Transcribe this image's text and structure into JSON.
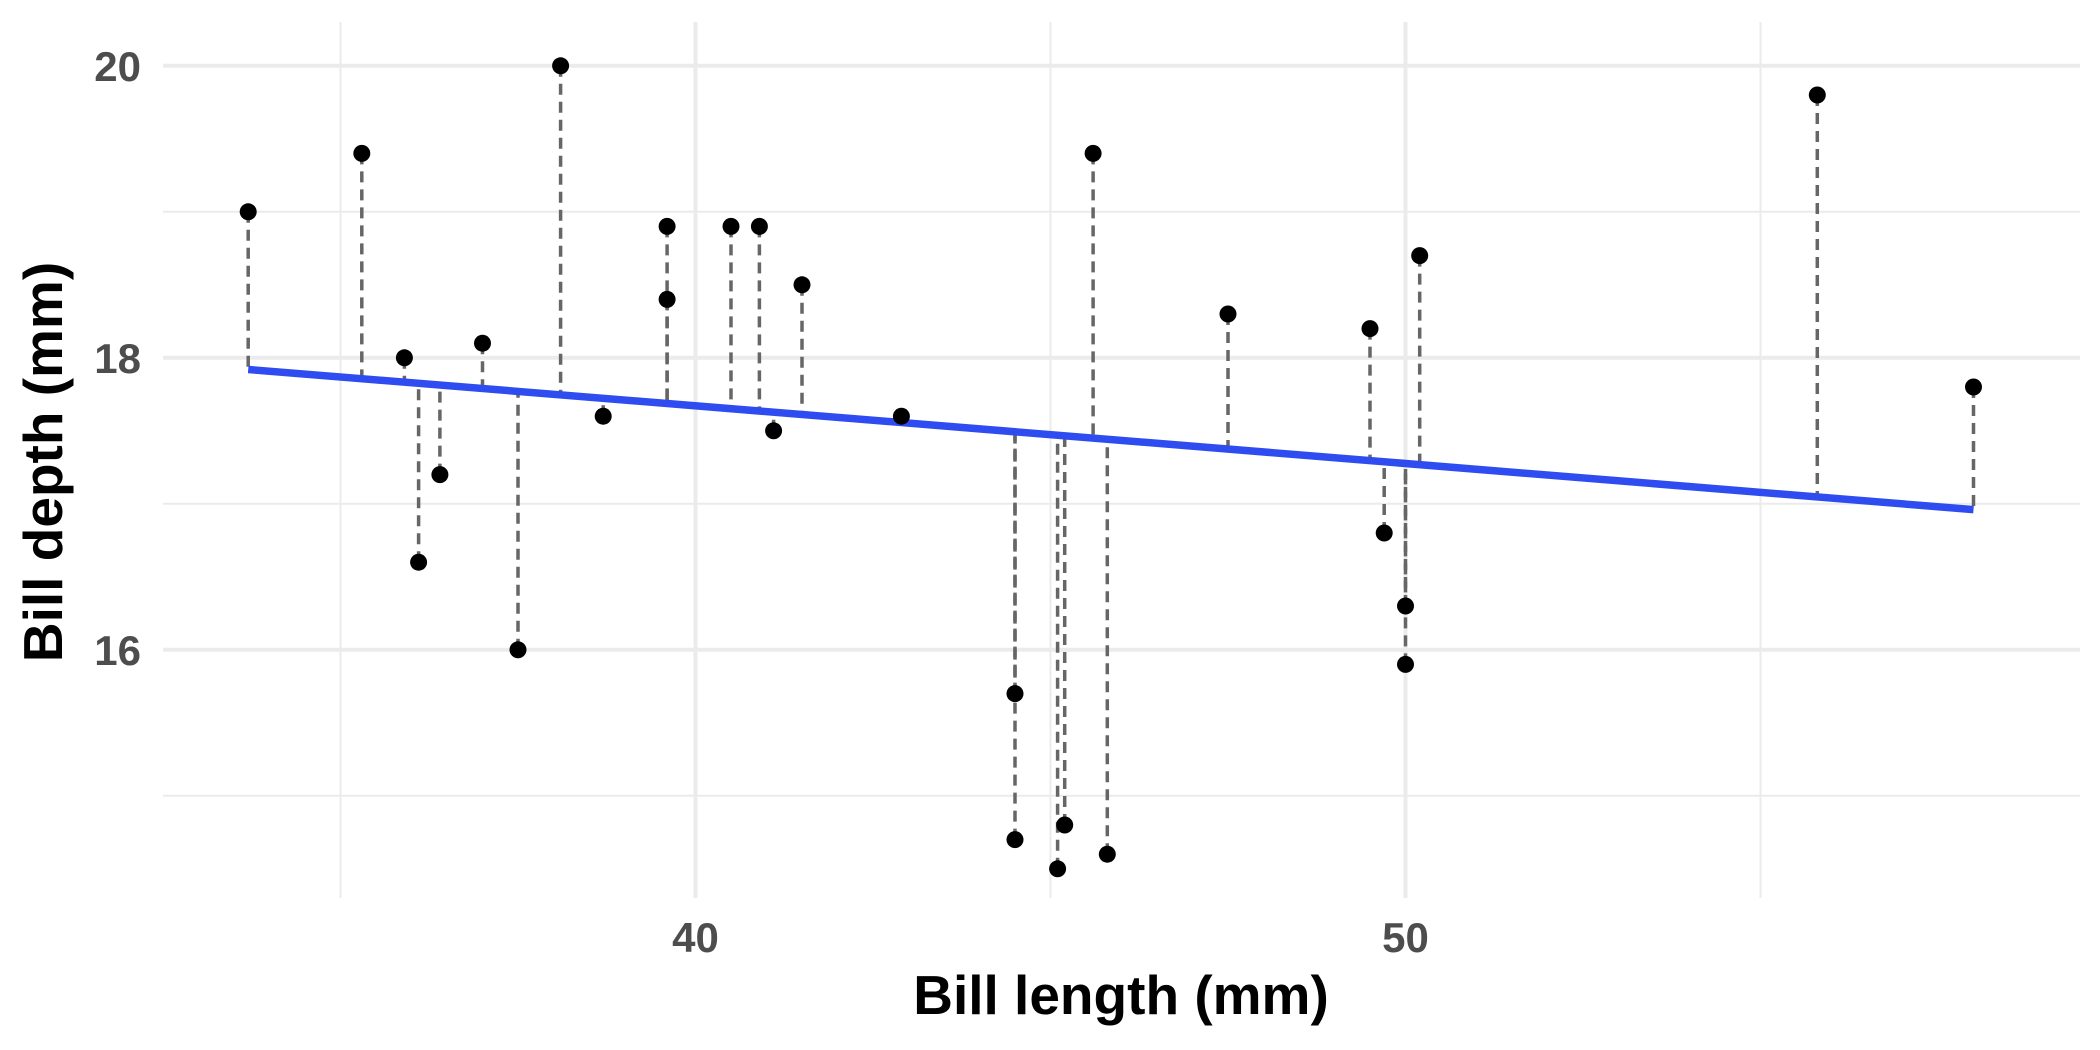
{
  "chart_data": {
    "type": "scatter",
    "xlabel": "Bill length (mm)",
    "ylabel": "Bill depth (mm)",
    "xlim": [
      32.5,
      59.5
    ],
    "ylim": [
      14.3,
      20.3
    ],
    "x_major_ticks": [
      40,
      50
    ],
    "x_minor_gridlines": [
      35,
      45,
      55
    ],
    "y_major_ticks": [
      16,
      18,
      20
    ],
    "y_minor_gridlines": [
      15,
      17,
      19
    ],
    "grid": true,
    "points": [
      {
        "x": 33.7,
        "y": 19.0
      },
      {
        "x": 35.3,
        "y": 19.4
      },
      {
        "x": 35.9,
        "y": 18.0
      },
      {
        "x": 36.1,
        "y": 16.6
      },
      {
        "x": 36.4,
        "y": 17.2
      },
      {
        "x": 37.0,
        "y": 18.1
      },
      {
        "x": 37.5,
        "y": 16.0
      },
      {
        "x": 38.1,
        "y": 20.0
      },
      {
        "x": 38.7,
        "y": 17.6
      },
      {
        "x": 39.6,
        "y": 18.9
      },
      {
        "x": 39.6,
        "y": 18.4
      },
      {
        "x": 40.5,
        "y": 18.9
      },
      {
        "x": 40.9,
        "y": 18.9
      },
      {
        "x": 41.1,
        "y": 17.5
      },
      {
        "x": 41.5,
        "y": 18.5
      },
      {
        "x": 42.9,
        "y": 17.6
      },
      {
        "x": 44.5,
        "y": 15.7
      },
      {
        "x": 44.5,
        "y": 14.7
      },
      {
        "x": 45.1,
        "y": 14.5
      },
      {
        "x": 45.2,
        "y": 14.8
      },
      {
        "x": 45.6,
        "y": 19.4
      },
      {
        "x": 45.8,
        "y": 14.6
      },
      {
        "x": 47.5,
        "y": 18.3
      },
      {
        "x": 49.5,
        "y": 18.2
      },
      {
        "x": 49.7,
        "y": 16.8
      },
      {
        "x": 50.0,
        "y": 16.3
      },
      {
        "x": 50.0,
        "y": 15.9
      },
      {
        "x": 50.2,
        "y": 18.7
      },
      {
        "x": 55.8,
        "y": 19.8
      },
      {
        "x": 58.0,
        "y": 17.8
      }
    ],
    "fit_line": {
      "x": [
        33.7,
        58.0
      ],
      "y": [
        17.92,
        16.96
      ]
    },
    "residuals": "dashed vertical segments from each point to the fitted line",
    "colors": {
      "points": "#000000",
      "fit_line": "#2e4cf0",
      "residuals": "#666666",
      "grid": "#ebebeb"
    }
  }
}
